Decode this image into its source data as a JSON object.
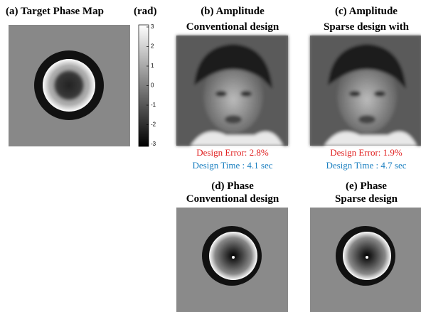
{
  "panel_a": {
    "title": "(a) Target Phase Map",
    "unit": "(rad)",
    "colorbar_ticks": [
      3,
      2,
      1,
      0,
      -1,
      -2,
      -3
    ]
  },
  "panel_b": {
    "title": [
      "(b) Amplitude",
      "Conventional design"
    ],
    "design_error": "Design Error: 2.8%",
    "design_time": "Design Time : 4.1 sec"
  },
  "panel_c": {
    "title": [
      "(c) Amplitude",
      "Sparse design with"
    ],
    "design_error": "Design Error: 1.9%",
    "design_time": "Design Time : 4.7 sec"
  },
  "panel_d": {
    "title": [
      "(d) Phase",
      "Conventional design"
    ]
  },
  "panel_e": {
    "title": [
      "(e) Phase",
      "Sparse design"
    ]
  }
}
